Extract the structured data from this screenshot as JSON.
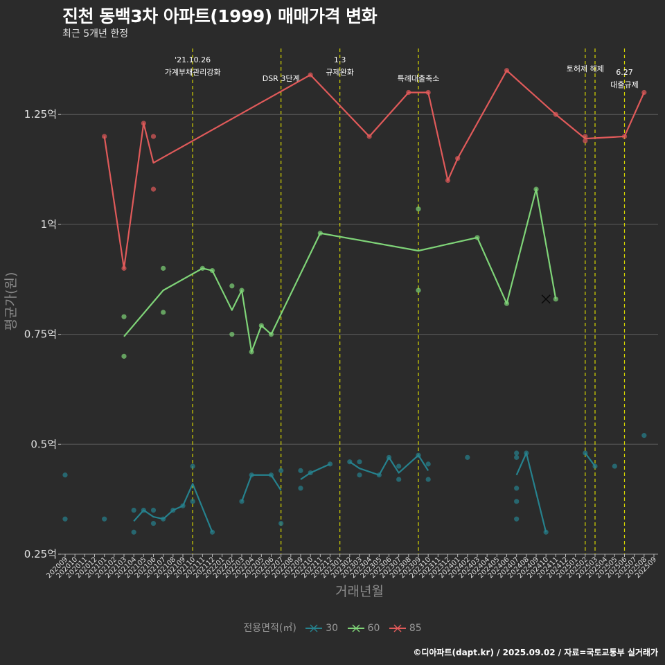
{
  "title": "진천 동백3차 아파트(1999) 매매가격 변화",
  "subtitle": "최근 5개년 한정",
  "footer": "©디아파트(dapt.kr) / 2025.09.02 / 자료=국토교통부 실거래가",
  "legend": {
    "title": "전용면적(㎡)",
    "items": [
      {
        "label": "30",
        "color": "#26828e"
      },
      {
        "label": "60",
        "color": "#7fd478"
      },
      {
        "label": "85",
        "color": "#e05a5a"
      }
    ]
  },
  "chart_data": {
    "type": "line",
    "title": "진천 동백3차 아파트(1999) 매매가격 변화",
    "subtitle": "최근 5개년 한정",
    "xlabel": "거래년월",
    "ylabel": "평균가(원)",
    "x_categories": [
      "202009",
      "202010",
      "202011",
      "202012",
      "202101",
      "202102",
      "202103",
      "202104",
      "202105",
      "202106",
      "202107",
      "202108",
      "202109",
      "202110",
      "202111",
      "202112",
      "202201",
      "202202",
      "202203",
      "202204",
      "202205",
      "202206",
      "202207",
      "202208",
      "202209",
      "202210",
      "202211",
      "202212",
      "202301",
      "202302",
      "202303",
      "202304",
      "202305",
      "202306",
      "202307",
      "202308",
      "202309",
      "202310",
      "202311",
      "202312",
      "202401",
      "202402",
      "202403",
      "202404",
      "202405",
      "202406",
      "202407",
      "202408",
      "202409",
      "202410",
      "202411",
      "202412",
      "202501",
      "202502",
      "202503",
      "202504",
      "202505",
      "202506",
      "202507",
      "202508",
      "202509"
    ],
    "ylim": [
      0.25,
      1.4
    ],
    "y_ticks": [
      0.25,
      0.5,
      0.75,
      1.0,
      1.25
    ],
    "y_tick_labels": [
      "0.25억",
      "0.5억",
      "0.75억",
      "1억",
      "1.25억"
    ],
    "grid": "horizontal",
    "legend_position": "bottom",
    "events": [
      {
        "x": "202110",
        "label": "'21.10.26\n가계부채관리강화"
      },
      {
        "x": "202207",
        "label": "DSR 3단계"
      },
      {
        "x": "202301",
        "label": "1.3\n규제완화"
      },
      {
        "x": "202309",
        "label": "특례대출축소"
      },
      {
        "x": "202502",
        "label": "토허제 해제"
      },
      {
        "x": "202503",
        "label": ""
      },
      {
        "x": "202506",
        "label": "6.27\n대출규제"
      }
    ],
    "series": [
      {
        "name": "30",
        "color": "#26828e",
        "line": [
          [
            "202104",
            0.325
          ],
          [
            "202105",
            0.35
          ],
          [
            "202106",
            0.335
          ],
          [
            "202107",
            0.33
          ],
          [
            "202108",
            0.35
          ],
          [
            "202109",
            0.36
          ],
          [
            "202110",
            0.41
          ],
          [
            "202112",
            0.3
          ],
          null,
          [
            "202203",
            0.37
          ],
          [
            "202204",
            0.43
          ],
          [
            "202206",
            0.43
          ],
          [
            "202207",
            0.395
          ],
          null,
          [
            "202209",
            0.42
          ],
          [
            "202210",
            0.435
          ],
          [
            "202212",
            0.455
          ],
          null,
          [
            "202302",
            0.46
          ],
          [
            "202303",
            0.445
          ],
          [
            "202305",
            0.43
          ],
          [
            "202306",
            0.47
          ],
          [
            "202307",
            0.435
          ],
          [
            "202309",
            0.475
          ],
          [
            "202310",
            0.44
          ],
          null,
          [
            "202407",
            0.43
          ],
          [
            "202408",
            0.48
          ],
          [
            "202410",
            0.3
          ],
          null,
          [
            "202502",
            0.48
          ],
          [
            "202503",
            0.45
          ]
        ],
        "points": [
          [
            "202009",
            0.43
          ],
          [
            "202009",
            0.33
          ],
          [
            "202101",
            0.33
          ],
          [
            "202104",
            0.35
          ],
          [
            "202104",
            0.3
          ],
          [
            "202105",
            0.35
          ],
          [
            "202106",
            0.35
          ],
          [
            "202106",
            0.32
          ],
          [
            "202107",
            0.33
          ],
          [
            "202108",
            0.35
          ],
          [
            "202109",
            0.36
          ],
          [
            "202110",
            0.45
          ],
          [
            "202110",
            0.37
          ],
          [
            "202112",
            0.3
          ],
          [
            "202203",
            0.37
          ],
          [
            "202204",
            0.43
          ],
          [
            "202206",
            0.43
          ],
          [
            "202207",
            0.44
          ],
          [
            "202207",
            0.32
          ],
          [
            "202209",
            0.44
          ],
          [
            "202209",
            0.4
          ],
          [
            "202210",
            0.435
          ],
          [
            "202212",
            0.455
          ],
          [
            "202302",
            0.46
          ],
          [
            "202303",
            0.46
          ],
          [
            "202303",
            0.43
          ],
          [
            "202305",
            0.43
          ],
          [
            "202306",
            0.47
          ],
          [
            "202307",
            0.45
          ],
          [
            "202307",
            0.42
          ],
          [
            "202309",
            0.475
          ],
          [
            "202310",
            0.455
          ],
          [
            "202310",
            0.42
          ],
          [
            "202402",
            0.47
          ],
          [
            "202407",
            0.48
          ],
          [
            "202407",
            0.47
          ],
          [
            "202407",
            0.4
          ],
          [
            "202407",
            0.37
          ],
          [
            "202407",
            0.33
          ],
          [
            "202408",
            0.48
          ],
          [
            "202410",
            0.3
          ],
          [
            "202502",
            0.48
          ],
          [
            "202503",
            0.45
          ],
          [
            "202505",
            0.45
          ],
          [
            "202508",
            0.52
          ]
        ]
      },
      {
        "name": "60",
        "color": "#7fd478",
        "line": [
          [
            "202103",
            0.745
          ],
          [
            "202107",
            0.85
          ],
          [
            "202111",
            0.9
          ],
          [
            "202112",
            0.895
          ],
          [
            "202202",
            0.805
          ],
          [
            "202203",
            0.85
          ],
          [
            "202204",
            0.71
          ],
          [
            "202205",
            0.77
          ],
          [
            "202206",
            0.75
          ],
          [
            "202211",
            0.98
          ],
          [
            "202309",
            0.94
          ],
          [
            "202403",
            0.97
          ],
          [
            "202406",
            0.82
          ],
          [
            "202409",
            1.08
          ],
          [
            "202411",
            0.83
          ]
        ],
        "points": [
          [
            "202103",
            0.79
          ],
          [
            "202103",
            0.7
          ],
          [
            "202107",
            0.9
          ],
          [
            "202107",
            0.8
          ],
          [
            "202111",
            0.9
          ],
          [
            "202112",
            0.895
          ],
          [
            "202202",
            0.86
          ],
          [
            "202202",
            0.75
          ],
          [
            "202203",
            0.85
          ],
          [
            "202204",
            0.71
          ],
          [
            "202205",
            0.77
          ],
          [
            "202206",
            0.75
          ],
          [
            "202211",
            0.98
          ],
          [
            "202309",
            1.035
          ],
          [
            "202309",
            0.85
          ],
          [
            "202403",
            0.97
          ],
          [
            "202406",
            0.82
          ],
          [
            "202409",
            1.08
          ],
          [
            "202411",
            0.83
          ]
        ],
        "cross": [
          [
            "202410",
            0.83
          ]
        ]
      },
      {
        "name": "85",
        "color": "#e05a5a",
        "line": [
          [
            "202101",
            1.2
          ],
          [
            "202103",
            0.9
          ],
          [
            "202105",
            1.23
          ],
          [
            "202106",
            1.14
          ],
          [
            "202210",
            1.34
          ],
          [
            "202304",
            1.2
          ],
          [
            "202308",
            1.3
          ],
          [
            "202310",
            1.3
          ],
          [
            "202312",
            1.1
          ],
          [
            "202401",
            1.15
          ],
          [
            "202406",
            1.35
          ],
          [
            "202411",
            1.25
          ],
          [
            "202502",
            1.195
          ],
          [
            "202506",
            1.2
          ],
          [
            "202508",
            1.3
          ]
        ],
        "points": [
          [
            "202101",
            1.2
          ],
          [
            "202103",
            0.9
          ],
          [
            "202105",
            1.23
          ],
          [
            "202106",
            1.2
          ],
          [
            "202106",
            1.08
          ],
          [
            "202210",
            1.34
          ],
          [
            "202304",
            1.2
          ],
          [
            "202308",
            1.3
          ],
          [
            "202310",
            1.3
          ],
          [
            "202312",
            1.1
          ],
          [
            "202401",
            1.15
          ],
          [
            "202406",
            1.35
          ],
          [
            "202411",
            1.25
          ],
          [
            "202502",
            1.2
          ],
          [
            "202502",
            1.19
          ],
          [
            "202506",
            1.2
          ],
          [
            "202508",
            1.3
          ]
        ]
      }
    ]
  }
}
